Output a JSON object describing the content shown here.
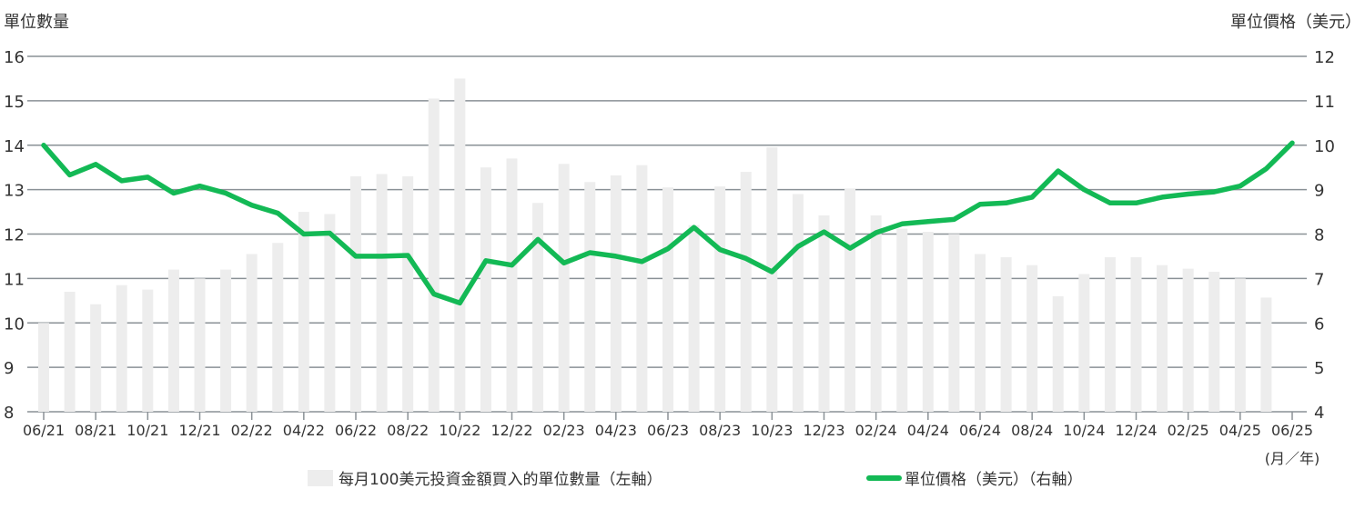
{
  "chart_data": {
    "type": "bar+line",
    "left_axis_title": "單位數量",
    "right_axis_title": "單位價格（美元）",
    "x_unit_label": "(月／年)",
    "left_ylim": [
      8,
      16
    ],
    "left_ticks": [
      8,
      9,
      10,
      11,
      12,
      13,
      14,
      15,
      16
    ],
    "right_ylim": [
      4,
      12
    ],
    "right_ticks": [
      4,
      5,
      6,
      7,
      8,
      9,
      10,
      11,
      12
    ],
    "grid": true,
    "x_tick_labels": [
      "06/21",
      "08/21",
      "10/21",
      "12/21",
      "02/22",
      "04/22",
      "06/22",
      "08/22",
      "10/22",
      "12/22",
      "02/23",
      "04/23",
      "06/23",
      "08/23",
      "10/23",
      "12/23",
      "02/24",
      "04/24",
      "06/24",
      "08/24",
      "10/24",
      "12/24",
      "02/25",
      "04/25",
      "06/25"
    ],
    "months": [
      "06/21",
      "07/21",
      "08/21",
      "09/21",
      "10/21",
      "11/21",
      "12/21",
      "01/22",
      "02/22",
      "03/22",
      "04/22",
      "05/22",
      "06/22",
      "07/22",
      "08/22",
      "09/22",
      "10/22",
      "11/22",
      "12/22",
      "01/23",
      "02/23",
      "03/23",
      "04/23",
      "05/23",
      "06/23",
      "07/23",
      "08/23",
      "09/23",
      "10/23",
      "11/23",
      "12/23",
      "01/24",
      "02/24",
      "03/24",
      "04/24",
      "05/24",
      "06/24",
      "07/24",
      "08/24",
      "09/24",
      "10/24",
      "11/24",
      "12/24",
      "01/25",
      "02/25",
      "03/25",
      "04/25",
      "05/25",
      "06/25"
    ],
    "series": [
      {
        "name": "每月100美元投資金額買入的單位數量（左軸）",
        "type": "bar",
        "axis": "left",
        "color": "#ededed",
        "values": [
          10.0,
          10.7,
          10.42,
          10.85,
          10.75,
          11.2,
          11.0,
          11.2,
          11.55,
          11.8,
          12.5,
          12.45,
          13.3,
          13.35,
          13.3,
          15.05,
          15.5,
          13.5,
          13.7,
          12.7,
          13.58,
          13.17,
          13.32,
          13.55,
          13.05,
          12.2,
          13.07,
          13.4,
          13.95,
          12.9,
          12.42,
          13.02,
          12.42,
          12.12,
          12.05,
          12.0,
          11.55,
          11.48,
          11.3,
          10.6,
          11.1,
          11.48,
          11.48,
          11.3,
          11.22,
          11.15,
          11.0,
          10.57,
          null
        ]
      },
      {
        "name": "單位價格（美元）（右軸）",
        "type": "line",
        "axis": "right",
        "color": "#13b955",
        "values": [
          10.0,
          9.33,
          9.57,
          9.2,
          9.28,
          8.92,
          9.08,
          8.92,
          8.65,
          8.47,
          8.0,
          8.02,
          7.5,
          7.5,
          7.52,
          6.65,
          6.45,
          7.4,
          7.3,
          7.88,
          7.35,
          7.58,
          7.5,
          7.38,
          7.67,
          8.15,
          7.65,
          7.45,
          7.15,
          7.72,
          8.05,
          7.68,
          8.03,
          8.23,
          8.28,
          8.33,
          8.67,
          8.7,
          8.83,
          9.42,
          9.0,
          8.7,
          8.7,
          8.83,
          8.9,
          8.95,
          9.08,
          9.47,
          10.05
        ]
      }
    ],
    "legend_position": "bottom"
  }
}
